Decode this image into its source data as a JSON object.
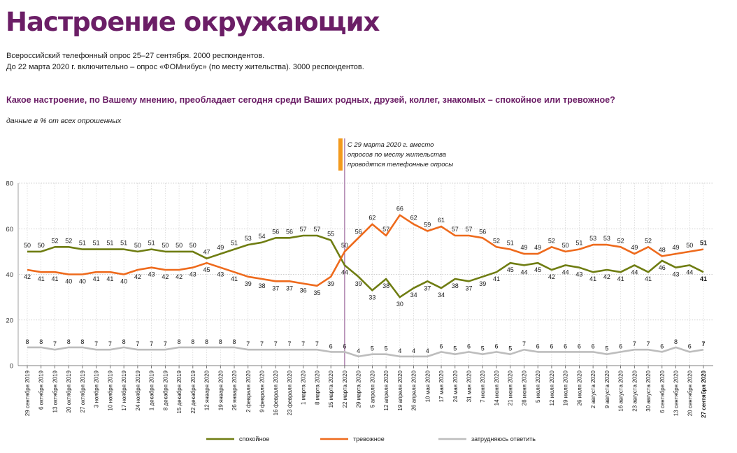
{
  "header": {
    "title": "Настроение окружающих",
    "subtitle1": "Всероссийский телефонный опрос 25–27 сентября. 2000 респондентов.",
    "subtitle2": "До 22 марта 2020 г. включительно – опрос «ФОМнибус» (по месту жительства). 3000 респондентов.",
    "question": "Какое настроение, по Вашему мнению, преобладает сегодня среди Ваших родных, друзей, коллег, знакомых – спокойное или тревожное?",
    "note": "данные в % от всех опрошенных"
  },
  "chart_data": {
    "type": "line",
    "title": "",
    "xlabel": "",
    "ylabel": "",
    "ylim": [
      0,
      80
    ],
    "yticks": [
      0,
      20,
      40,
      60,
      80
    ],
    "grid": true,
    "legend_position": "bottom",
    "x": [
      "29 сентября 2019",
      "6 октября 2019",
      "13 октября 2019",
      "20 октября 2019",
      "27 октября 2019",
      "3 ноября 2019",
      "10 ноября 2019",
      "17 ноября 2019",
      "24 ноября 2019",
      "1 декабря 2019",
      "8 декабря 2019",
      "15 декабря 2019",
      "22 декабря 2019",
      "12 января 2020",
      "19 января 2020",
      "26 января 2020",
      "2 февраля 2020",
      "9 февраля 2020",
      "16 февраля 2020",
      "23 февраля 2020",
      "1 марта 2020",
      "8 марта 2020",
      "15 марта 2020",
      "22 марта 2020",
      "29 марта 2020",
      "5 апреля 2020",
      "12 апреля 2020",
      "19 апреля 2020",
      "26 апреля 2020",
      "10 мая 2020",
      "17 мая 2020",
      "24 мая 2020",
      "31 мая 2020",
      "7 июня 2020",
      "14 июня 2020",
      "21 июня 2020",
      "28 июня 2020",
      "5 июля 2020",
      "12 июля 2020",
      "19 июля 2020",
      "26 июля 2020",
      "2 августа 2020",
      "9 августа 2020",
      "16 августа 2020",
      "23 августа 2020",
      "30 августа 2020",
      "6 сентября 2020",
      "13 сентября 2020",
      "20 сентября 2020",
      "27 сентября 2020"
    ],
    "series": [
      {
        "name": "спокойное",
        "color": "#6f7d12",
        "values": [
          50,
          50,
          52,
          52,
          51,
          51,
          51,
          51,
          50,
          51,
          50,
          50,
          50,
          47,
          49,
          51,
          53,
          54,
          56,
          56,
          57,
          57,
          55,
          44,
          39,
          33,
          38,
          30,
          34,
          37,
          34,
          38,
          37,
          39,
          41,
          45,
          44,
          45,
          42,
          44,
          43,
          41,
          42,
          41,
          44,
          41,
          46,
          43,
          44,
          41
        ]
      },
      {
        "name": "тревожное",
        "color": "#ee6a1c",
        "values": [
          42,
          41,
          41,
          40,
          40,
          41,
          41,
          40,
          42,
          43,
          42,
          42,
          43,
          45,
          43,
          41,
          39,
          38,
          37,
          37,
          36,
          35,
          39,
          50,
          56,
          62,
          57,
          66,
          62,
          59,
          61,
          57,
          57,
          56,
          52,
          51,
          49,
          49,
          52,
          50,
          51,
          53,
          53,
          52,
          49,
          52,
          48,
          49,
          50,
          51
        ]
      },
      {
        "name": "затрудняюсь ответить",
        "color": "#bdbdbd",
        "values": [
          8,
          8,
          7,
          8,
          8,
          7,
          7,
          8,
          7,
          7,
          7,
          8,
          8,
          8,
          8,
          8,
          7,
          7,
          7,
          7,
          7,
          7,
          6,
          6,
          4,
          5,
          5,
          4,
          4,
          4,
          6,
          5,
          6,
          5,
          6,
          5,
          7,
          6,
          6,
          6,
          6,
          6,
          5,
          6,
          7,
          7,
          6,
          8,
          6,
          7
        ]
      }
    ],
    "annotation": {
      "at": "22 марта 2020",
      "lines": [
        "С 29 марта 2020 г. вместо",
        "опросов по месту жительства",
        "проводятся телефонные опросы"
      ]
    }
  }
}
